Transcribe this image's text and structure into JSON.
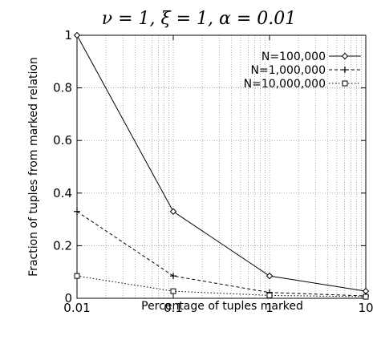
{
  "chart_data": {
    "type": "line",
    "title": "ν = 1, ξ = 1, α = 0.01",
    "xlabel": "Percentage of tuples marked",
    "ylabel": "Fraction of tuples from marked relation",
    "x_scale": "log",
    "xlim": [
      0.01,
      10
    ],
    "ylim": [
      0,
      1
    ],
    "grid": true,
    "legend_position": "top-right",
    "x_ticks": [
      "0.01",
      "0.1",
      "1",
      "10"
    ],
    "y_ticks": [
      "0",
      "0.2",
      "0.4",
      "0.6",
      "0.8",
      "1"
    ],
    "x": [
      0.01,
      0.1,
      1,
      10
    ],
    "series": [
      {
        "name": "N=100,000",
        "values": [
          1.0,
          0.33,
          0.085,
          0.027
        ],
        "marker": "diamond",
        "line_style": "solid"
      },
      {
        "name": "N=1,000,000",
        "values": [
          0.33,
          0.085,
          0.022,
          0.009
        ],
        "marker": "plus",
        "line_style": "dashed"
      },
      {
        "name": "N=10,000,000",
        "values": [
          0.085,
          0.027,
          0.011,
          0.006
        ],
        "marker": "square",
        "line_style": "dotted"
      }
    ]
  }
}
